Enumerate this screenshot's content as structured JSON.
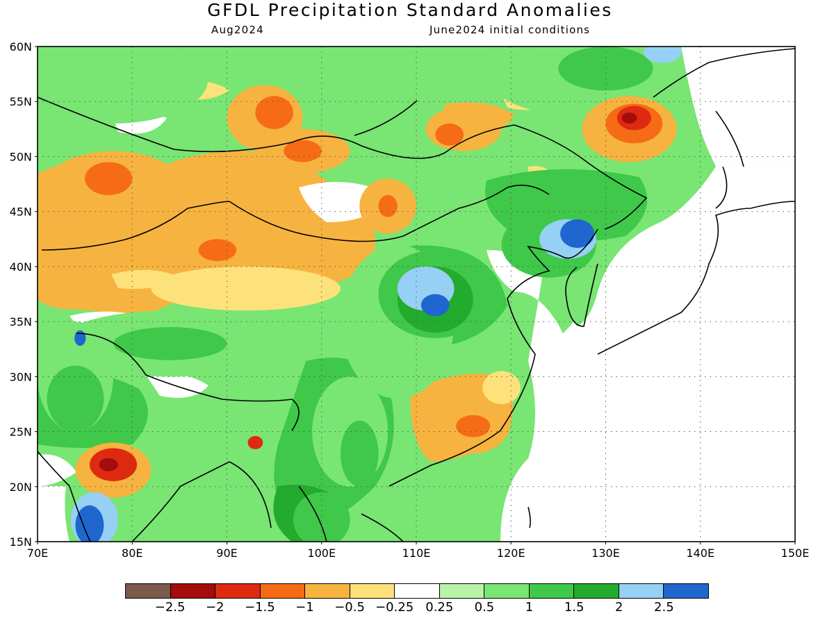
{
  "title": "GFDL Precipitation Standard Anomalies",
  "subtitle_left": "Aug2024",
  "subtitle_right": "June2024 initial conditions",
  "axes": {
    "lon_labels": [
      "70E",
      "80E",
      "90E",
      "100E",
      "110E",
      "120E",
      "130E",
      "140E",
      "150E"
    ],
    "lat_labels": [
      "15N",
      "20N",
      "25N",
      "30N",
      "35N",
      "40N",
      "45N",
      "50N",
      "55N",
      "60N"
    ],
    "lon_range": [
      70,
      150
    ],
    "lat_range": [
      15,
      60
    ],
    "grid": "dotted"
  },
  "colors": {
    "lt_m25": "#7a5a4a",
    "m25_m2": "#a30d0d",
    "m2_m15": "#dd2a10",
    "m15_m1": "#f66b16",
    "m1_m05": "#f7b33f",
    "m05_m025": "#fde27c",
    "neutral": "#ffffff",
    "p025_p05": "#b8f3a8",
    "p05_p1": "#79e573",
    "p1_p15": "#3fc84a",
    "p15_p2": "#22ab2c",
    "p2_p25": "#96d0f4",
    "gt_p25": "#1f67cf"
  },
  "legend": {
    "swatches": [
      "lt_m25",
      "m25_m2",
      "m2_m15",
      "m15_m1",
      "m1_m05",
      "m05_m025",
      "neutral",
      "p025_p05",
      "p05_p1",
      "p1_p15",
      "p15_p2",
      "p2_p25",
      "gt_p25"
    ],
    "labels": [
      "−2.5",
      "−2",
      "−1.5",
      "−1",
      "−0.5",
      "−0.25",
      "0.25",
      "0.5",
      "1",
      "1.5",
      "2",
      "2.5"
    ]
  },
  "regions": [
    {
      "level": "p05_p1",
      "lon": 78,
      "lat": 57,
      "rlon": 10,
      "rlat": 4
    },
    {
      "level": "p05_p1",
      "lon": 107,
      "lat": 58,
      "rlon": 14,
      "rlat": 3
    },
    {
      "level": "p05_p1",
      "lon": 125,
      "lat": 57,
      "rlon": 7,
      "rlat": 3
    },
    {
      "level": "p1_p15",
      "lon": 130,
      "lat": 58,
      "rlon": 5,
      "rlat": 2
    },
    {
      "level": "p2_p25",
      "lon": 136,
      "lat": 59.5,
      "rlon": 2,
      "rlat": 1
    },
    {
      "level": "m1_m05",
      "lon": 94,
      "lat": 53.5,
      "rlon": 4,
      "rlat": 3
    },
    {
      "level": "m15_m1",
      "lon": 95,
      "lat": 54,
      "rlon": 2,
      "rlat": 1.5
    },
    {
      "level": "m1_m05",
      "lon": 115,
      "lat": 52.5,
      "rlon": 4,
      "rlat": 2
    },
    {
      "level": "m15_m1",
      "lon": 113.5,
      "lat": 52,
      "rlon": 1.5,
      "rlat": 1
    },
    {
      "level": "m1_m05",
      "lon": 132.5,
      "lat": 52.5,
      "rlon": 5,
      "rlat": 3
    },
    {
      "level": "m15_m1",
      "lon": 133,
      "lat": 53,
      "rlon": 3,
      "rlat": 1.8
    },
    {
      "level": "m2_m15",
      "lon": 133,
      "lat": 53.5,
      "rlon": 1.8,
      "rlat": 1.1
    },
    {
      "level": "m25_m2",
      "lon": 132.5,
      "lat": 53.5,
      "rlon": 0.8,
      "rlat": 0.5
    },
    {
      "level": "m1_m05",
      "lon": 78,
      "lat": 47.5,
      "rlon": 7,
      "rlat": 3
    },
    {
      "level": "m15_m1",
      "lon": 77.5,
      "lat": 48,
      "rlon": 2.5,
      "rlat": 1.5
    },
    {
      "level": "m1_m05",
      "lon": 98,
      "lat": 50.5,
      "rlon": 5,
      "rlat": 2
    },
    {
      "level": "m15_m1",
      "lon": 98,
      "lat": 50.5,
      "rlon": 2,
      "rlat": 1
    },
    {
      "level": "m1_m05",
      "lon": 107,
      "lat": 45.5,
      "rlon": 3,
      "rlat": 2.5
    },
    {
      "level": "m15_m1",
      "lon": 107,
      "lat": 45.5,
      "rlon": 1,
      "rlat": 1
    },
    {
      "level": "m1_m05",
      "lon": 88,
      "lat": 43,
      "rlon": 9,
      "rlat": 4
    },
    {
      "level": "m15_m1",
      "lon": 89,
      "lat": 41.5,
      "rlon": 2,
      "rlat": 1
    },
    {
      "level": "m05_m025",
      "lon": 92,
      "lat": 38,
      "rlon": 10,
      "rlat": 2
    },
    {
      "level": "p05_p1",
      "lon": 108,
      "lat": 35,
      "rlon": 6,
      "rlat": 7
    },
    {
      "level": "p1_p15",
      "lon": 112,
      "lat": 37.5,
      "rlon": 6,
      "rlat": 4
    },
    {
      "level": "p15_p2",
      "lon": 112,
      "lat": 37,
      "rlon": 4,
      "rlat": 3
    },
    {
      "level": "p2_p25",
      "lon": 111,
      "lat": 38,
      "rlon": 3,
      "rlat": 2
    },
    {
      "level": "gt_p25",
      "lon": 112,
      "lat": 36.5,
      "rlon": 1.5,
      "rlat": 1
    },
    {
      "level": "p1_p15",
      "lon": 124,
      "lat": 42,
      "rlon": 5,
      "rlat": 3
    },
    {
      "level": "p2_p25",
      "lon": 126,
      "lat": 42.5,
      "rlon": 3,
      "rlat": 1.8
    },
    {
      "level": "gt_p25",
      "lon": 127,
      "lat": 43,
      "rlon": 1.8,
      "rlat": 1.3
    },
    {
      "level": "p05_p1",
      "lon": 84,
      "lat": 33,
      "rlon": 12,
      "rlat": 3
    },
    {
      "level": "p1_p15",
      "lon": 84,
      "lat": 33,
      "rlon": 6,
      "rlat": 1.5
    },
    {
      "level": "p05_p1",
      "lon": 74,
      "lat": 30,
      "rlon": 4,
      "rlat": 5
    },
    {
      "level": "p1_p15",
      "lon": 74,
      "lat": 28,
      "rlon": 3,
      "rlat": 3
    },
    {
      "level": "gt_p25",
      "lon": 74.5,
      "lat": 33.5,
      "rlon": 0.6,
      "rlat": 0.7
    },
    {
      "level": "p05_p1",
      "lon": 103,
      "lat": 25,
      "rlon": 4,
      "rlat": 5
    },
    {
      "level": "p1_p15",
      "lon": 104,
      "lat": 23,
      "rlon": 2,
      "rlat": 3
    },
    {
      "level": "m1_m05",
      "lon": 116,
      "lat": 26,
      "rlon": 4,
      "rlat": 3
    },
    {
      "level": "m15_m1",
      "lon": 116,
      "lat": 25.5,
      "rlon": 1.8,
      "rlat": 1
    },
    {
      "level": "m05_m025",
      "lon": 119,
      "lat": 29,
      "rlon": 2,
      "rlat": 1.5
    },
    {
      "level": "m1_m05",
      "lon": 78,
      "lat": 21.5,
      "rlon": 4,
      "rlat": 2.5
    },
    {
      "level": "m2_m15",
      "lon": 78,
      "lat": 22,
      "rlon": 2.5,
      "rlat": 1.5
    },
    {
      "level": "m25_m2",
      "lon": 77.5,
      "lat": 22,
      "rlon": 1,
      "rlat": 0.6
    },
    {
      "level": "m2_m15",
      "lon": 93,
      "lat": 24,
      "rlon": 0.8,
      "rlat": 0.6
    },
    {
      "level": "p2_p25",
      "lon": 76,
      "lat": 17,
      "rlon": 2.5,
      "rlat": 2.5
    },
    {
      "level": "gt_p25",
      "lon": 75.5,
      "lat": 16.5,
      "rlon": 1.5,
      "rlat": 1.8
    },
    {
      "level": "p1_p15",
      "lon": 100,
      "lat": 17,
      "rlon": 3,
      "rlat": 2.5
    }
  ]
}
